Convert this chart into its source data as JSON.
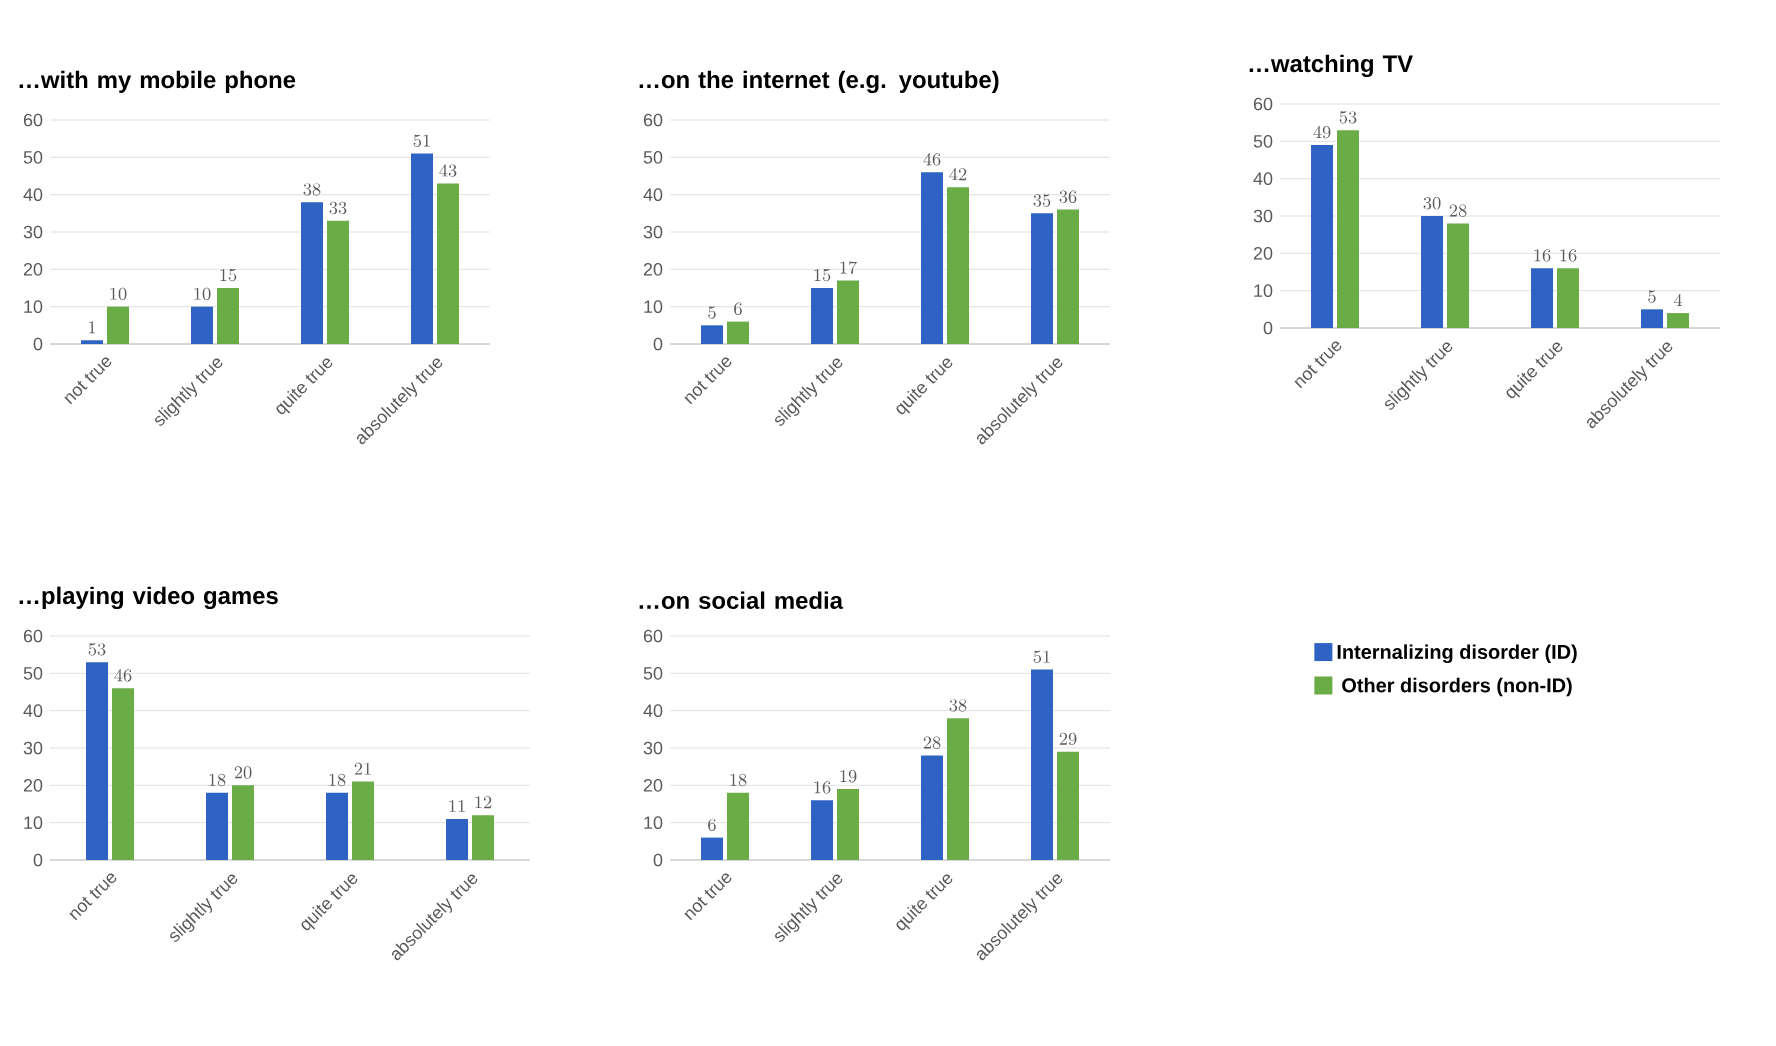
{
  "chart_data": [
    {
      "type": "bar",
      "title": "…with my mobile phone",
      "categories": [
        "not true",
        "slightly true",
        "quite true",
        "absolutely true"
      ],
      "series": [
        {
          "color": "#2e63c4",
          "values": [
            1,
            10,
            38,
            51
          ]
        },
        {
          "color": "#6aac46",
          "values": [
            10,
            15,
            33,
            43
          ]
        }
      ],
      "ylim": [
        0,
        60
      ],
      "yticks": [
        0,
        10,
        20,
        30,
        40,
        50,
        60
      ],
      "grid": "y",
      "data_labels": true
    },
    {
      "type": "bar",
      "title": "…on the internet (e.g. youtube)",
      "categories": [
        "not true",
        "slightly true",
        "quite true",
        "absolutely true"
      ],
      "series": [
        {
          "color": "#2e63c4",
          "values": [
            5,
            15,
            46,
            35
          ]
        },
        {
          "color": "#6aac46",
          "values": [
            6,
            17,
            42,
            36
          ]
        }
      ],
      "ylim": [
        0,
        60
      ],
      "yticks": [
        0,
        10,
        20,
        30,
        40,
        50,
        60
      ],
      "grid": "y",
      "data_labels": true
    },
    {
      "type": "bar",
      "title": "…watching TV",
      "categories": [
        "not true",
        "slightly true",
        "quite true",
        "absolutely true"
      ],
      "series": [
        {
          "color": "#2e63c4",
          "values": [
            49,
            30,
            16,
            5
          ]
        },
        {
          "color": "#6aac46",
          "values": [
            53,
            28,
            16,
            4
          ]
        }
      ],
      "ylim": [
        0,
        60
      ],
      "yticks": [
        0,
        10,
        20,
        30,
        40,
        50,
        60
      ],
      "grid": "y",
      "data_labels": true
    },
    {
      "type": "bar",
      "title": "…playing video games",
      "categories": [
        "not true",
        "slightly true",
        "quite true",
        "absolutely true"
      ],
      "series": [
        {
          "color": "#2e63c4",
          "values": [
            53,
            18,
            18,
            11
          ]
        },
        {
          "color": "#6aac46",
          "values": [
            46,
            20,
            21,
            12
          ]
        }
      ],
      "ylim": [
        0,
        60
      ],
      "yticks": [
        0,
        10,
        20,
        30,
        40,
        50,
        60
      ],
      "grid": "y",
      "data_labels": true
    },
    {
      "type": "bar",
      "title": "…on social media",
      "categories": [
        "not true",
        "slightly true",
        "quite true",
        "absolutely true"
      ],
      "series": [
        {
          "name": "Internalizing disorder (ID)",
          "color": "#2e63c4",
          "values": [
            6,
            16,
            28,
            51
          ]
        },
        {
          "name": "Other disorders (non-ID)",
          "color": "#6aac46",
          "values": [
            18,
            19,
            38,
            29
          ]
        }
      ],
      "ylim": [
        0,
        60
      ],
      "yticks": [
        0,
        10,
        20,
        30,
        40,
        50,
        60
      ],
      "grid": "y",
      "data_labels": true,
      "legend": "right"
    }
  ]
}
